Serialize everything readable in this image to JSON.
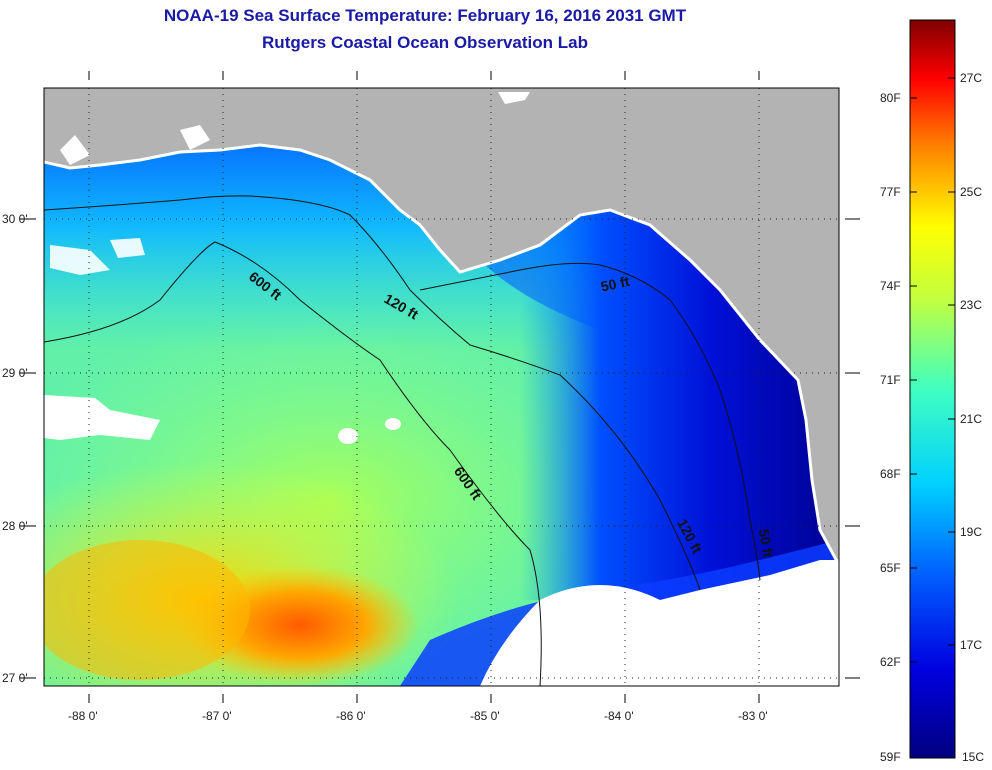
{
  "header": {
    "title": "NOAA-19 Sea Surface Temperature:  February 16, 2016 2031 GMT",
    "subtitle": "Rutgers Coastal Ocean Observation Lab"
  },
  "map": {
    "lon_labels": [
      "-88 0'",
      "-87 0'",
      "-86 0'",
      "-85 0'",
      "-84 0'",
      "-83 0'"
    ],
    "lat_labels": [
      "30 0'",
      "29 0'",
      "28 0'",
      "27 0'"
    ],
    "contours": [
      {
        "label": "600 ft"
      },
      {
        "label": "120 ft"
      },
      {
        "label": "50 ft"
      }
    ],
    "colors": {
      "land": "#b3b3b3",
      "cloud": "#ffffff"
    }
  },
  "colorbar": {
    "fahrenheit": [
      "80F",
      "77F",
      "74F",
      "71F",
      "68F",
      "65F",
      "62F",
      "59F"
    ],
    "celsius": [
      "27C",
      "25C",
      "23C",
      "21C",
      "19C",
      "17C",
      "15C"
    ]
  }
}
